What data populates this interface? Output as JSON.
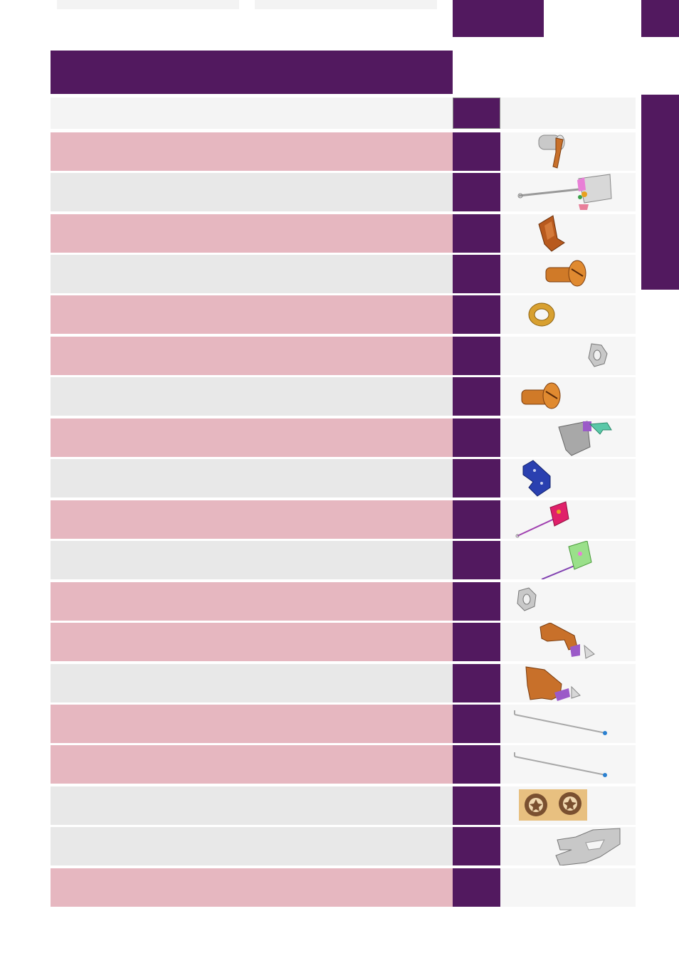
{
  "header": {
    "title": ""
  },
  "colors": {
    "accent": "#52195f",
    "row_pink": "#e6b7c0",
    "row_grey": "#e8e8e8"
  },
  "rows": [
    {
      "style": "pink",
      "icon": "sleeve-with-lever-part"
    },
    {
      "style": "grey",
      "icon": "rod-with-bracket-part"
    },
    {
      "style": "pink",
      "icon": "orange-bracket-part"
    },
    {
      "style": "grey",
      "icon": "slotted-screw-part"
    },
    {
      "style": "pink",
      "icon": "washer-part"
    },
    {
      "style": "pink",
      "icon": "hex-nut-part"
    },
    {
      "style": "grey",
      "icon": "slotted-screw-part"
    },
    {
      "style": "pink",
      "icon": "grey-bracket-with-lever-part"
    },
    {
      "style": "grey",
      "icon": "blue-plate-part"
    },
    {
      "style": "pink",
      "icon": "red-plate-with-rod-part"
    },
    {
      "style": "grey",
      "icon": "green-plate-with-rod-part"
    },
    {
      "style": "pink",
      "icon": "hex-nut-part"
    },
    {
      "style": "pink",
      "icon": "orange-arm-assembly-part"
    },
    {
      "style": "grey",
      "icon": "orange-plate-assembly-part"
    },
    {
      "style": "pink",
      "icon": "long-rod-part"
    },
    {
      "style": "pink",
      "icon": "long-rod-part"
    },
    {
      "style": "grey",
      "icon": "star-washers-part"
    },
    {
      "style": "grey",
      "icon": "grey-hook-plate-part"
    },
    {
      "style": "pink",
      "icon": ""
    }
  ]
}
